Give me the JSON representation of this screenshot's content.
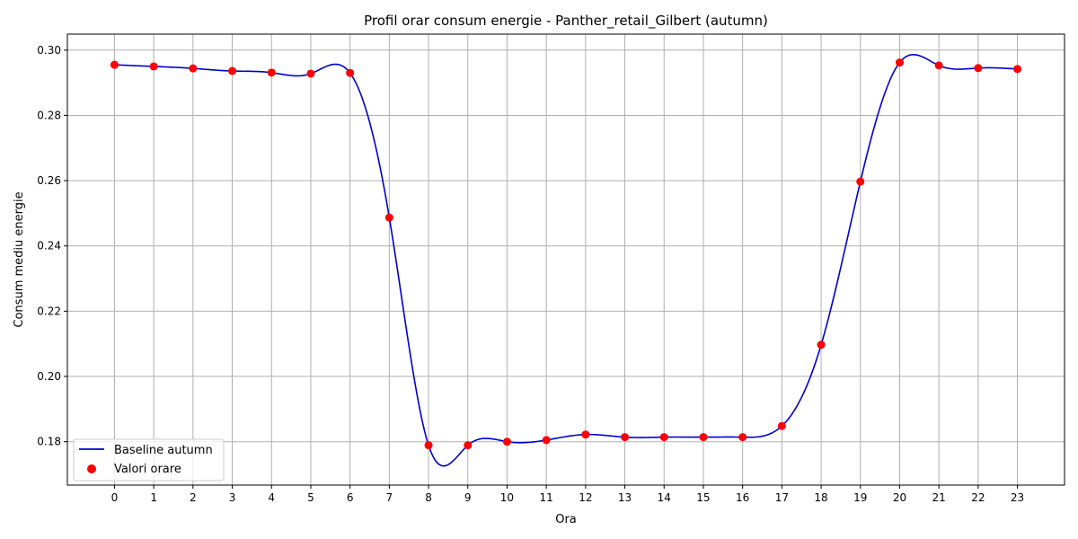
{
  "chart_data": {
    "type": "line",
    "title": "Profil orar consum energie - Panther_retail_Gilbert (autumn)",
    "xlabel": "Ora",
    "ylabel": "Consum mediu energie",
    "x": [
      0,
      1,
      2,
      3,
      4,
      5,
      6,
      7,
      8,
      9,
      10,
      11,
      12,
      13,
      14,
      15,
      16,
      17,
      18,
      19,
      20,
      21,
      22,
      23
    ],
    "xlim": [
      -1.2,
      24.2
    ],
    "ylim": [
      0.1667,
      0.3049
    ],
    "yticks": [
      0.18,
      0.2,
      0.22,
      0.24,
      0.26,
      0.28,
      0.3
    ],
    "ytick_labels": [
      "0.18",
      "0.20",
      "0.22",
      "0.24",
      "0.26",
      "0.28",
      "0.30"
    ],
    "grid": true,
    "legend_position": "lower-left",
    "series": [
      {
        "name": "Baseline autumn",
        "kind": "line",
        "color": "#0000cc",
        "values": [
          0.2955,
          0.295,
          0.2944,
          0.2936,
          0.2931,
          0.2928,
          0.293,
          0.2487,
          0.1789,
          0.1789,
          0.18,
          0.1805,
          0.1822,
          0.1814,
          0.1814,
          0.1814,
          0.1814,
          0.1848,
          0.2097,
          0.2597,
          0.2962,
          0.2953,
          0.2945,
          0.2942
        ]
      },
      {
        "name": "Valori orare",
        "kind": "scatter",
        "color": "#ff0000",
        "values": [
          0.2955,
          0.295,
          0.2944,
          0.2936,
          0.2931,
          0.2928,
          0.293,
          0.2487,
          0.1789,
          0.1789,
          0.18,
          0.1805,
          0.1822,
          0.1814,
          0.1814,
          0.1814,
          0.1814,
          0.1848,
          0.2097,
          0.2597,
          0.2962,
          0.2953,
          0.2945,
          0.2942
        ]
      }
    ]
  }
}
